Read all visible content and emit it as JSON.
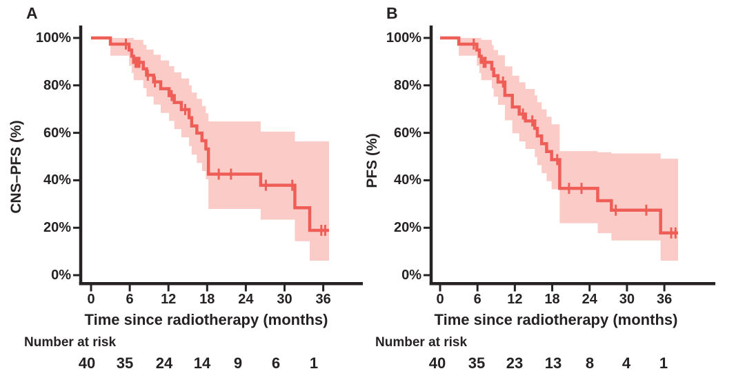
{
  "colors": {
    "curve": "#ee5e57",
    "band": "#fbcbc8",
    "axis": "#262223",
    "text": "#262223",
    "background": "#ffffff"
  },
  "chart_data": [
    {
      "type": "line",
      "subtype": "kaplan-meier",
      "panel_label": "A",
      "ylabel": "CNS–PFS (%)",
      "xlabel": "Time since radiotherapy (months)",
      "x_ticks": [
        0,
        6,
        12,
        18,
        24,
        30,
        36
      ],
      "x_tick_labels": [
        "0",
        "6",
        "12",
        "18",
        "24",
        "30",
        "36"
      ],
      "y_ticks": [
        0,
        20,
        40,
        60,
        80,
        100
      ],
      "y_tick_labels": [
        "0%",
        "20%",
        "40%",
        "60%",
        "80%",
        "100%"
      ],
      "xlim": [
        0,
        42
      ],
      "ylim": [
        0,
        100
      ],
      "grid": false,
      "legend": null,
      "end_time": 36.9,
      "survival_steps": [
        [
          3.0,
          97.4
        ],
        [
          5.9,
          94.9
        ],
        [
          6.3,
          92.3
        ],
        [
          6.6,
          89.7
        ],
        [
          8.1,
          87.0
        ],
        [
          8.6,
          84.3
        ],
        [
          9.7,
          81.5
        ],
        [
          10.8,
          78.6
        ],
        [
          12.1,
          75.7
        ],
        [
          12.9,
          72.8
        ],
        [
          14.0,
          69.8
        ],
        [
          15.2,
          66.4
        ],
        [
          15.6,
          62.9
        ],
        [
          16.4,
          59.9
        ],
        [
          17.2,
          56.7
        ],
        [
          17.8,
          53.2
        ],
        [
          18.2,
          42.6
        ],
        [
          26.3,
          37.9
        ],
        [
          31.6,
          28.4
        ],
        [
          33.9,
          18.9
        ]
      ],
      "censor_times": [
        5.4,
        6.9,
        7.2,
        7.5,
        8.8,
        9.9,
        12.5,
        14.6,
        19.8,
        21.7,
        27.1,
        31.2,
        35.7,
        36.3
      ],
      "confidence_band": [
        [
          3.0,
          92.5,
          100
        ],
        [
          5.9,
          88.3,
          100
        ],
        [
          6.3,
          85.2,
          100
        ],
        [
          6.6,
          82.2,
          99.2
        ],
        [
          8.1,
          78.8,
          97.1
        ],
        [
          8.6,
          75.3,
          95.1
        ],
        [
          9.7,
          71.9,
          92.9
        ],
        [
          10.8,
          68.4,
          90.5
        ],
        [
          12.1,
          65.0,
          88.1
        ],
        [
          12.9,
          61.6,
          85.5
        ],
        [
          14.0,
          58.1,
          82.9
        ],
        [
          15.2,
          54.4,
          80.0
        ],
        [
          15.6,
          50.8,
          77.0
        ],
        [
          16.4,
          47.3,
          74.3
        ],
        [
          17.2,
          43.9,
          71.3
        ],
        [
          17.8,
          40.4,
          68.2
        ],
        [
          18.2,
          27.9,
          64.8
        ],
        [
          26.3,
          23.4,
          60.5
        ],
        [
          31.6,
          14.3,
          56.4
        ],
        [
          33.9,
          6.1,
          56.4
        ]
      ],
      "number_at_risk_label": "Number at risk",
      "number_at_risk": [
        "40",
        "35",
        "24",
        "14",
        "9",
        "6",
        "1"
      ]
    },
    {
      "type": "line",
      "subtype": "kaplan-meier",
      "panel_label": "B",
      "ylabel": "PFS (%)",
      "xlabel": "Time since radiotherapy (months)",
      "x_ticks": [
        0,
        6,
        12,
        18,
        24,
        30,
        36
      ],
      "x_tick_labels": [
        "0",
        "6",
        "12",
        "18",
        "24",
        "30",
        "36"
      ],
      "y_ticks": [
        0,
        20,
        40,
        60,
        80,
        100
      ],
      "y_tick_labels": [
        "0%",
        "20%",
        "40%",
        "60%",
        "80%",
        "100%"
      ],
      "xlim": [
        0,
        44
      ],
      "ylim": [
        0,
        100
      ],
      "grid": false,
      "legend": null,
      "end_time": 38.2,
      "survival_steps": [
        [
          3.0,
          97.4
        ],
        [
          5.9,
          94.9
        ],
        [
          6.3,
          92.3
        ],
        [
          6.6,
          89.7
        ],
        [
          8.3,
          86.9
        ],
        [
          8.6,
          84.1
        ],
        [
          9.3,
          81.4
        ],
        [
          10.4,
          75.8
        ],
        [
          11.6,
          70.9
        ],
        [
          12.7,
          67.9
        ],
        [
          13.7,
          65.0
        ],
        [
          15.2,
          61.9
        ],
        [
          15.6,
          58.7
        ],
        [
          16.3,
          55.4
        ],
        [
          17.1,
          52.1
        ],
        [
          17.9,
          48.7
        ],
        [
          19.2,
          36.6
        ],
        [
          25.3,
          31.4
        ],
        [
          27.5,
          27.4
        ],
        [
          35.4,
          17.8
        ]
      ],
      "censor_times": [
        5.4,
        7.0,
        7.3,
        10.1,
        13.3,
        14.8,
        18.8,
        20.7,
        22.7,
        28.2,
        33.1,
        37.1,
        37.8
      ],
      "confidence_band": [
        [
          3.0,
          92.5,
          100
        ],
        [
          5.9,
          88.3,
          100
        ],
        [
          6.3,
          85.2,
          100
        ],
        [
          6.6,
          82.2,
          99.2
        ],
        [
          8.3,
          78.7,
          96.9
        ],
        [
          8.6,
          75.2,
          94.9
        ],
        [
          9.3,
          71.8,
          92.7
        ],
        [
          10.4,
          65.3,
          88.0
        ],
        [
          11.6,
          59.8,
          84.1
        ],
        [
          12.7,
          56.4,
          81.3
        ],
        [
          13.7,
          53.2,
          78.5
        ],
        [
          15.2,
          49.8,
          75.8
        ],
        [
          15.6,
          46.4,
          72.9
        ],
        [
          16.3,
          43.0,
          69.9
        ],
        [
          17.1,
          39.6,
          66.8
        ],
        [
          17.9,
          36.2,
          63.6
        ],
        [
          19.2,
          21.9,
          52.3
        ],
        [
          25.3,
          17.7,
          51.8
        ],
        [
          27.5,
          14.6,
          51.3
        ],
        [
          35.4,
          6.1,
          49.1
        ]
      ],
      "number_at_risk_label": "Number at risk",
      "number_at_risk": [
        "40",
        "35",
        "23",
        "13",
        "8",
        "4",
        "1"
      ]
    }
  ]
}
